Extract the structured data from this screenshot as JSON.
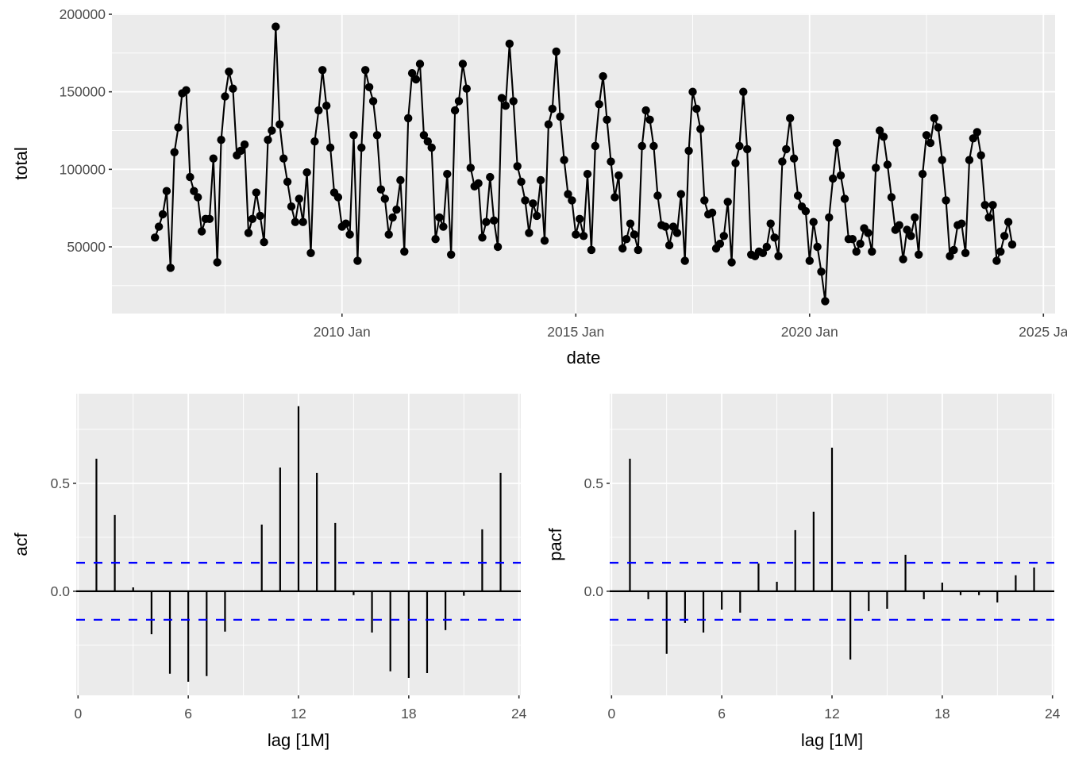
{
  "chart_data": [
    {
      "id": "timeseries",
      "type": "line",
      "title": "",
      "xlabel": "date",
      "ylabel": "total",
      "x_start": "2006 Jan",
      "frequency": "monthly",
      "x_ticks": [
        {
          "label": "2010 Jan",
          "year": 2010
        },
        {
          "label": "2015 Jan",
          "year": 2015
        },
        {
          "label": "2020 Jan",
          "year": 2020
        },
        {
          "label": "2025 Ja",
          "year": 2025
        }
      ],
      "xlim": [
        2005.08,
        2025.25
      ],
      "y_ticks": [
        50000,
        100000,
        150000,
        200000
      ],
      "y_tick_labels": [
        "50000",
        "100000",
        "150000",
        "200000"
      ],
      "ylim": [
        7000,
        200500
      ],
      "grid": true,
      "markers": true,
      "values": [
        56000,
        63000,
        71000,
        86000,
        36500,
        111000,
        127000,
        149000,
        151000,
        95000,
        86000,
        82000,
        60000,
        68000,
        68000,
        107000,
        40000,
        119000,
        147000,
        163000,
        152000,
        109000,
        112000,
        116000,
        59000,
        68000,
        85000,
        70000,
        53000,
        119000,
        125000,
        192000,
        129000,
        107000,
        92000,
        76000,
        66000,
        81000,
        66000,
        98000,
        46000,
        118000,
        138000,
        164000,
        141000,
        114000,
        85000,
        82000,
        63000,
        65000,
        58000,
        122000,
        41000,
        114000,
        164000,
        153000,
        144000,
        122000,
        87000,
        81000,
        58000,
        69000,
        74000,
        93000,
        47000,
        133000,
        162000,
        158000,
        168000,
        122000,
        118000,
        114000,
        55000,
        69000,
        63000,
        97000,
        45000,
        138000,
        144000,
        168000,
        152000,
        101000,
        89000,
        91000,
        56000,
        66000,
        95000,
        67000,
        50000,
        146000,
        141000,
        181000,
        144000,
        102000,
        92000,
        80000,
        59000,
        78000,
        70000,
        93000,
        54000,
        129000,
        139000,
        176000,
        134000,
        106000,
        84000,
        80000,
        58000,
        68000,
        57000,
        97000,
        48000,
        115000,
        142000,
        160000,
        132000,
        105000,
        82000,
        96000,
        49000,
        55000,
        65000,
        58000,
        48000,
        115000,
        138000,
        132000,
        115000,
        83000,
        64000,
        63000,
        51000,
        63000,
        59000,
        84000,
        41000,
        112000,
        150000,
        139000,
        126000,
        80000,
        71000,
        72000,
        49000,
        52000,
        57000,
        79000,
        40000,
        104000,
        115000,
        150000,
        113000,
        45000,
        44000,
        47000,
        46000,
        50000,
        65000,
        56000,
        44000,
        105000,
        113000,
        133000,
        107000,
        83000,
        76000,
        73000,
        41000,
        66000,
        50000,
        34000,
        15000,
        69000,
        94000,
        117000,
        96000,
        81000,
        55000,
        55000,
        47000,
        52000,
        62000,
        59000,
        47000,
        101000,
        125000,
        121000,
        103000,
        82000,
        61000,
        64000,
        42000,
        61000,
        57000,
        69000,
        45000,
        97000,
        122000,
        117000,
        133000,
        127000,
        106000,
        80000,
        44000,
        48000,
        64000,
        65000,
        46000,
        106000,
        120000,
        124000,
        109000,
        77000,
        69000,
        77000,
        41000,
        47000,
        57000,
        66000,
        51500
      ],
      "line_color": "#000000",
      "panel_color": "#ebebeb"
    },
    {
      "id": "acf",
      "type": "bar",
      "title": "",
      "xlabel": "lag [1M]",
      "ylabel": "acf",
      "lags": [
        1,
        2,
        3,
        4,
        5,
        6,
        7,
        8,
        9,
        10,
        11,
        12,
        13,
        14,
        15,
        16,
        17,
        18,
        19,
        20,
        21,
        22,
        23
      ],
      "values": [
        0.614,
        0.353,
        0.018,
        -0.199,
        -0.382,
        -0.419,
        -0.393,
        -0.187,
        0.0,
        0.309,
        0.573,
        0.857,
        0.548,
        0.316,
        -0.018,
        -0.191,
        -0.371,
        -0.401,
        -0.379,
        -0.18,
        -0.021,
        0.287,
        0.548
      ],
      "x_ticks": [
        0,
        6,
        12,
        18,
        24
      ],
      "xlim": [
        -0.1,
        24.1
      ],
      "y_ticks": [
        0.0,
        0.5
      ],
      "y_tick_labels": [
        "0.0",
        "0.5"
      ],
      "ylim": [
        -0.482,
        0.915
      ],
      "confidence_bound": 0.132,
      "bound_color": "#0000ff",
      "grid": true
    },
    {
      "id": "pacf",
      "type": "bar",
      "title": "",
      "xlabel": "lag [1M]",
      "ylabel": "pacf",
      "lags": [
        1,
        2,
        3,
        4,
        5,
        6,
        7,
        8,
        9,
        10,
        11,
        12,
        13,
        14,
        15,
        16,
        17,
        18,
        19,
        20,
        21,
        22,
        23
      ],
      "values": [
        0.614,
        -0.037,
        -0.29,
        -0.147,
        -0.191,
        -0.085,
        -0.099,
        0.129,
        0.044,
        0.283,
        0.368,
        0.665,
        -0.316,
        -0.092,
        -0.081,
        0.169,
        -0.037,
        0.04,
        -0.018,
        -0.018,
        -0.052,
        0.074,
        0.11
      ],
      "x_ticks": [
        0,
        6,
        12,
        18,
        24
      ],
      "xlim": [
        -0.1,
        24.1
      ],
      "y_ticks": [
        0.0,
        0.5
      ],
      "y_tick_labels": [
        "0.0",
        "0.5"
      ],
      "ylim": [
        -0.482,
        0.915
      ],
      "confidence_bound": 0.132,
      "bound_color": "#0000ff",
      "grid": true
    }
  ]
}
